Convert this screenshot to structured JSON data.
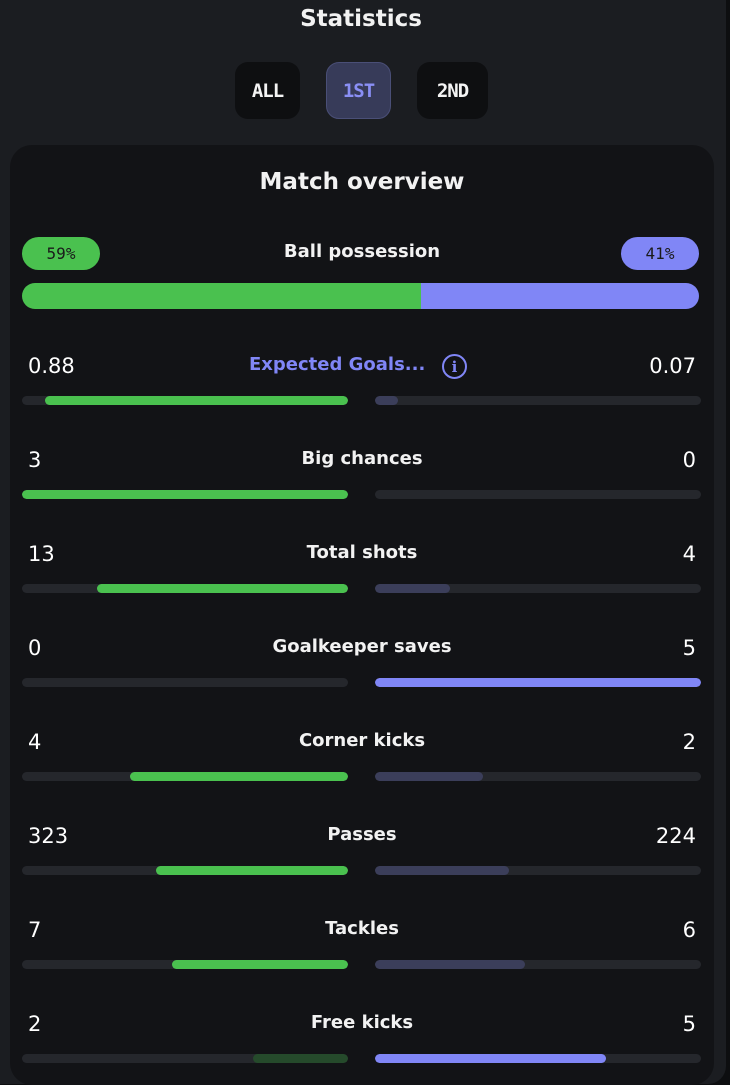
{
  "header": {
    "title": "Statistics"
  },
  "tabs": [
    {
      "label": "ALL",
      "active": false
    },
    {
      "label": "1ST",
      "active": true
    },
    {
      "label": "2ND",
      "active": false
    }
  ],
  "overview": {
    "title": "Match overview",
    "possession": {
      "label": "Ball possession",
      "home": "59%",
      "away": "41%",
      "home_fraction": 0.59
    },
    "stats": [
      {
        "name": "Expected Goals...",
        "home": "0.88",
        "away": "0.07",
        "home_frac": 0.93,
        "away_frac": 0.07,
        "home_wins": true,
        "link": true,
        "info": true
      },
      {
        "name": "Big chances",
        "home": "3",
        "away": "0",
        "home_frac": 1.0,
        "away_frac": 0.0,
        "home_wins": true
      },
      {
        "name": "Total shots",
        "home": "13",
        "away": "4",
        "home_frac": 0.77,
        "away_frac": 0.23,
        "home_wins": true
      },
      {
        "name": "Goalkeeper saves",
        "home": "0",
        "away": "5",
        "home_frac": 0.0,
        "away_frac": 1.0,
        "home_wins": false
      },
      {
        "name": "Corner kicks",
        "home": "4",
        "away": "2",
        "home_frac": 0.67,
        "away_frac": 0.33,
        "home_wins": true
      },
      {
        "name": "Passes",
        "home": "323",
        "away": "224",
        "home_frac": 0.59,
        "away_frac": 0.41,
        "home_wins": true
      },
      {
        "name": "Tackles",
        "home": "7",
        "away": "6",
        "home_frac": 0.54,
        "away_frac": 0.46,
        "home_wins": true
      },
      {
        "name": "Free kicks",
        "home": "2",
        "away": "5",
        "home_frac": 0.29,
        "away_frac": 0.71,
        "home_wins": false
      }
    ]
  },
  "colors": {
    "home": "#4ac14f",
    "away": "#8086f6",
    "accent": "#8086f6"
  },
  "icons": {
    "info": "info-icon"
  }
}
